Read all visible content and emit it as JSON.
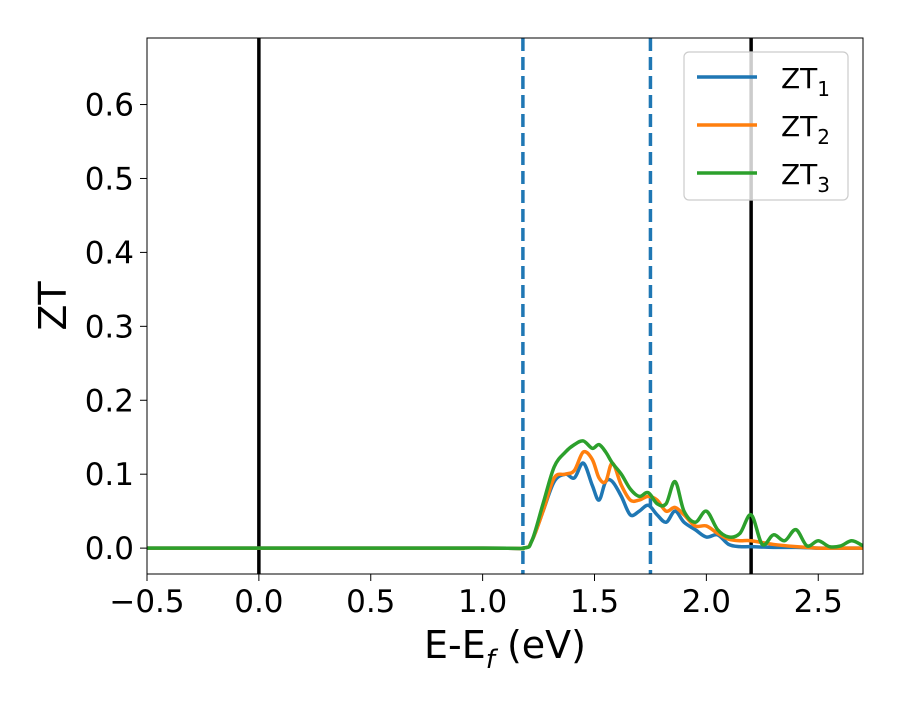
{
  "chart_data": {
    "type": "line",
    "title": "",
    "xlabel": "E-E",
    "xlabel_sub": "f",
    "xlabel_unit": " (eV)",
    "ylabel": "ZT",
    "xlim": [
      -0.5,
      2.7
    ],
    "ylim": [
      -0.035,
      0.69
    ],
    "xticks": [
      -0.5,
      0.0,
      0.5,
      1.0,
      1.5,
      2.0,
      2.5
    ],
    "xtick_labels": [
      "−0.5",
      "0.0",
      "0.5",
      "1.0",
      "1.5",
      "2.0",
      "2.5"
    ],
    "yticks": [
      0.0,
      0.1,
      0.2,
      0.3,
      0.4,
      0.5,
      0.6
    ],
    "ytick_labels": [
      "0.0",
      "0.1",
      "0.2",
      "0.3",
      "0.4",
      "0.5",
      "0.6"
    ],
    "grid": false,
    "legend_position": "top-right",
    "vertical_lines": [
      {
        "x": 0.0,
        "style": "solid",
        "color": "#000000"
      },
      {
        "x": 1.18,
        "style": "dashed",
        "color": "#1f77b4"
      },
      {
        "x": 1.75,
        "style": "dashed",
        "color": "#1f77b4"
      },
      {
        "x": 2.2,
        "style": "solid",
        "color": "#000000"
      }
    ],
    "series": [
      {
        "name": "ZT",
        "name_sub": "1",
        "color": "#1f77b4",
        "x": [
          -0.5,
          1.0,
          1.18,
          1.22,
          1.27,
          1.32,
          1.37,
          1.41,
          1.45,
          1.49,
          1.52,
          1.55,
          1.58,
          1.62,
          1.66,
          1.7,
          1.74,
          1.78,
          1.82,
          1.86,
          1.9,
          1.95,
          2.0,
          2.05,
          2.1,
          2.15,
          2.2,
          2.3,
          2.4,
          2.5,
          2.6,
          2.7
        ],
        "y": [
          0,
          0,
          0,
          0.01,
          0.05,
          0.09,
          0.1,
          0.095,
          0.115,
          0.085,
          0.065,
          0.09,
          0.09,
          0.07,
          0.045,
          0.05,
          0.058,
          0.045,
          0.035,
          0.05,
          0.035,
          0.025,
          0.015,
          0.018,
          0.005,
          0.002,
          0.002,
          0.001,
          0.001,
          0,
          0,
          0
        ]
      },
      {
        "name": "ZT",
        "name_sub": "2",
        "color": "#ff7f0e",
        "x": [
          -0.5,
          1.0,
          1.18,
          1.22,
          1.27,
          1.32,
          1.37,
          1.41,
          1.45,
          1.49,
          1.52,
          1.55,
          1.58,
          1.62,
          1.66,
          1.7,
          1.74,
          1.78,
          1.82,
          1.86,
          1.9,
          1.95,
          2.0,
          2.05,
          2.1,
          2.15,
          2.2,
          2.3,
          2.4,
          2.5,
          2.6,
          2.7
        ],
        "y": [
          0,
          0,
          0,
          0.01,
          0.05,
          0.095,
          0.1,
          0.105,
          0.13,
          0.12,
          0.095,
          0.09,
          0.115,
          0.085,
          0.065,
          0.065,
          0.07,
          0.065,
          0.05,
          0.055,
          0.045,
          0.03,
          0.03,
          0.02,
          0.012,
          0.01,
          0.01,
          0.005,
          0.002,
          0,
          0,
          0
        ]
      },
      {
        "name": "ZT",
        "name_sub": "3",
        "color": "#2ca02c",
        "x": [
          -0.5,
          1.0,
          1.18,
          1.22,
          1.27,
          1.32,
          1.37,
          1.41,
          1.45,
          1.49,
          1.52,
          1.55,
          1.58,
          1.62,
          1.66,
          1.7,
          1.74,
          1.78,
          1.82,
          1.86,
          1.9,
          1.95,
          2.0,
          2.05,
          2.1,
          2.15,
          2.2,
          2.25,
          2.3,
          2.35,
          2.4,
          2.45,
          2.5,
          2.55,
          2.6,
          2.65,
          2.7
        ],
        "y": [
          0,
          0,
          0,
          0.01,
          0.06,
          0.11,
          0.13,
          0.14,
          0.145,
          0.135,
          0.14,
          0.13,
          0.115,
          0.1,
          0.08,
          0.07,
          0.075,
          0.06,
          0.06,
          0.09,
          0.05,
          0.035,
          0.05,
          0.025,
          0.015,
          0.02,
          0.045,
          0.005,
          0.018,
          0.01,
          0.025,
          0.003,
          0.01,
          0.002,
          0.003,
          0.01,
          0.003
        ]
      }
    ]
  }
}
